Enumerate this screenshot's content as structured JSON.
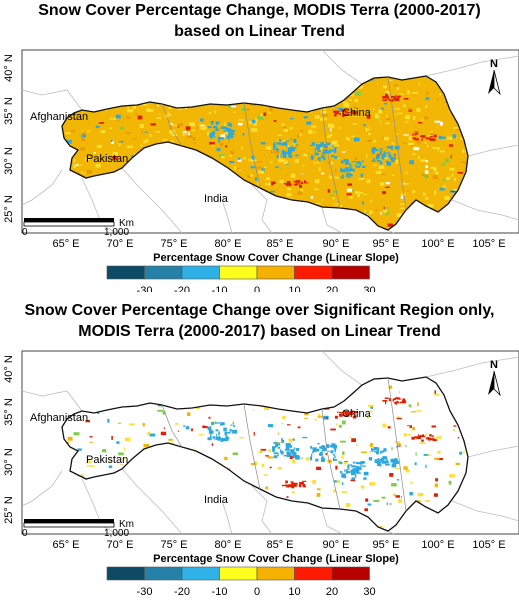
{
  "panels": [
    {
      "title_line1": "Snow Cover Percentage Change, MODIS Terra (2000-2017)",
      "title_line2": "based on Linear Trend",
      "mode": "full"
    },
    {
      "title_line1": "Snow Cover Percentage Change over Significant Region only,",
      "title_line2": "MODIS Terra (2000-2017) based on Linear Trend",
      "mode": "significant"
    }
  ],
  "map": {
    "x_ticks": [
      "65° E",
      "70° E",
      "75° E",
      "80° E",
      "85° E",
      "90° E",
      "95° E",
      "100° E",
      "105° E"
    ],
    "y_ticks": [
      "40° N",
      "35° N",
      "30° N",
      "25° N"
    ],
    "place_labels": [
      "Afghanistan",
      "Pakistan",
      "China",
      "India"
    ],
    "north_arrow_label": "N",
    "scale_bar": {
      "start_label": "0",
      "end_label": "1,000",
      "unit_label": "Km"
    }
  },
  "legend": {
    "title": "Percentage Snow Cover Change (Linear Slope)",
    "tick_labels": [
      "-30",
      "-20",
      "-10",
      "0",
      "10",
      "20",
      "30"
    ],
    "colors": [
      "#0d4a66",
      "#2581a8",
      "#2eb1e6",
      "#ffff1e",
      "#f5b000",
      "#ff1a00",
      "#b80000"
    ]
  },
  "colors": {
    "trend_base": "#f2b705",
    "trend_light": "#ffe030",
    "trend_blue": "#2aa8e0",
    "trend_green": "#7ccd4a",
    "trend_red": "#e02000",
    "significant_base": "#ffffff"
  }
}
